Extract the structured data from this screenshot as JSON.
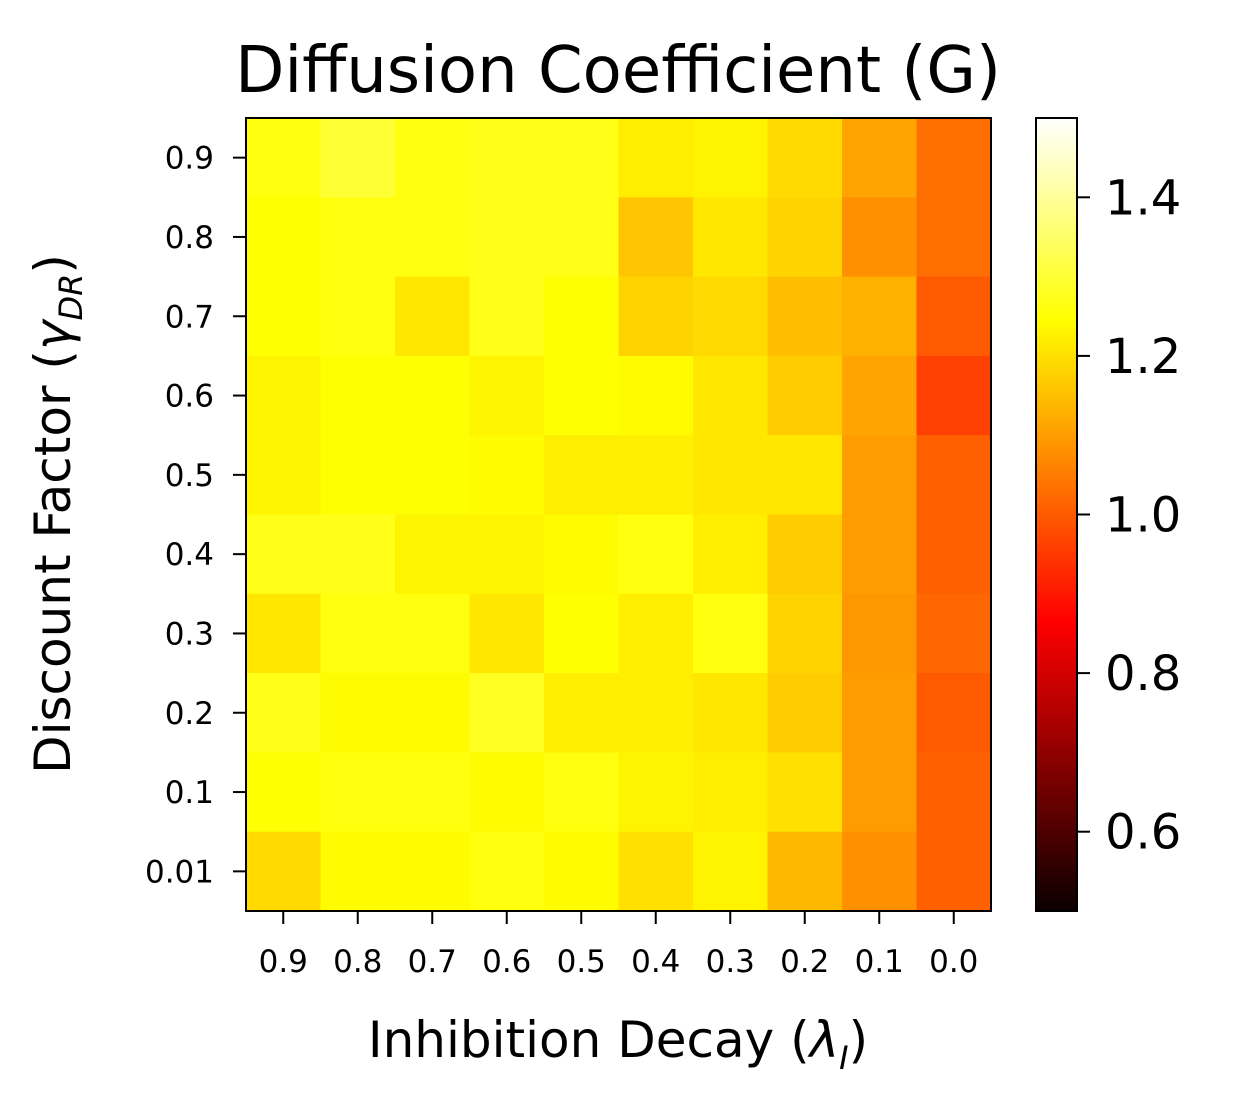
{
  "chart_data": {
    "type": "heatmap",
    "title": "Diffusion Coefficient (G)",
    "xlabel": {
      "text": "Inhibition Decay (",
      "symbol": "λ",
      "subscript": "I",
      "suffix": ")"
    },
    "ylabel": {
      "text": "Discount Factor (",
      "symbol": "γ",
      "subscript": "DR",
      "suffix": ")"
    },
    "x_categories": [
      "0.9",
      "0.8",
      "0.7",
      "0.6",
      "0.5",
      "0.4",
      "0.3",
      "0.2",
      "0.1",
      "0.0"
    ],
    "y_categories": [
      "0.9",
      "0.8",
      "0.7",
      "0.6",
      "0.5",
      "0.4",
      "0.3",
      "0.2",
      "0.1",
      "0.01"
    ],
    "values": [
      [
        1.26,
        1.3,
        1.26,
        1.27,
        1.27,
        1.22,
        1.23,
        1.19,
        1.11,
        1.03
      ],
      [
        1.25,
        1.26,
        1.26,
        1.27,
        1.27,
        1.16,
        1.21,
        1.18,
        1.08,
        1.03
      ],
      [
        1.25,
        1.26,
        1.21,
        1.27,
        1.25,
        1.18,
        1.19,
        1.15,
        1.13,
        1.0
      ],
      [
        1.23,
        1.25,
        1.25,
        1.23,
        1.25,
        1.24,
        1.21,
        1.17,
        1.11,
        0.96
      ],
      [
        1.23,
        1.25,
        1.25,
        1.24,
        1.22,
        1.22,
        1.21,
        1.21,
        1.1,
        1.01
      ],
      [
        1.27,
        1.27,
        1.23,
        1.23,
        1.24,
        1.26,
        1.22,
        1.17,
        1.1,
        1.01
      ],
      [
        1.21,
        1.26,
        1.26,
        1.21,
        1.25,
        1.22,
        1.26,
        1.18,
        1.09,
        1.02
      ],
      [
        1.27,
        1.24,
        1.24,
        1.28,
        1.22,
        1.22,
        1.21,
        1.17,
        1.1,
        1.0
      ],
      [
        1.25,
        1.26,
        1.26,
        1.24,
        1.26,
        1.23,
        1.22,
        1.2,
        1.1,
        1.01
      ],
      [
        1.19,
        1.24,
        1.24,
        1.26,
        1.24,
        1.2,
        1.23,
        1.14,
        1.08,
        1.01
      ]
    ],
    "colormap": "hot",
    "vmin": 0.5,
    "vmax": 1.5,
    "colorbar_ticks": [
      "0.6",
      "0.8",
      "1.0",
      "1.2",
      "1.4"
    ],
    "colorbar_tick_values": [
      0.6,
      0.8,
      1.0,
      1.2,
      1.4
    ],
    "grid": false,
    "legend": "none"
  }
}
